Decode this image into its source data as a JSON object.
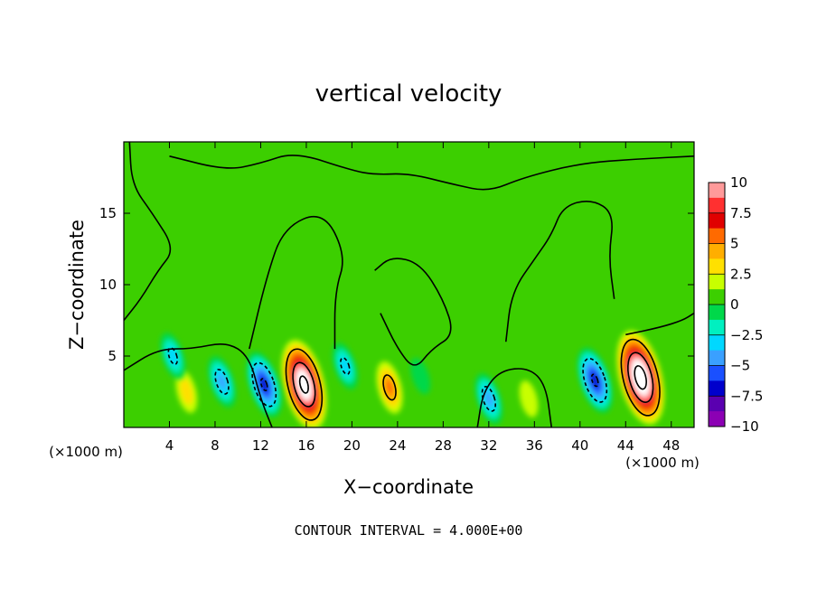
{
  "chart_data": {
    "type": "heatmap",
    "title": "vertical velocity",
    "xlabel": "X−coordinate",
    "ylabel": "Z−coordinate",
    "x_unit_label_left": "(×1000 m)",
    "x_unit_label_right": "(×1000 m)",
    "footer": "CONTOUR INTERVAL = 4.000E+00",
    "xlim": [
      0,
      50
    ],
    "ylim": [
      0,
      20
    ],
    "x_ticks": [
      4,
      8,
      12,
      16,
      20,
      24,
      28,
      32,
      36,
      40,
      44,
      48
    ],
    "y_ticks": [
      5,
      10,
      15
    ],
    "colorbar": {
      "tick_labels": [
        "10",
        "7.5",
        "5",
        "2.5",
        "0",
        "−2.5",
        "−5",
        "−7.5",
        "−10"
      ],
      "tick_values": [
        10,
        7.5,
        5,
        2.5,
        0,
        -2.5,
        -5,
        -7.5,
        -10
      ],
      "range": [
        -10,
        10
      ],
      "colors": [
        "#ff9a9a",
        "#ff3030",
        "#e00000",
        "#ff6a00",
        "#ffae00",
        "#ffe000",
        "#c8ff00",
        "#3ccf00",
        "#00d84a",
        "#00f0c0",
        "#00d8ff",
        "#3aa0ff",
        "#1a50ff",
        "#0000cc",
        "#5a00b0",
        "#8c00b4"
      ]
    },
    "features": [
      {
        "type": "updraft",
        "x": 15.8,
        "z": 3.0,
        "peak": 13
      },
      {
        "type": "updraft",
        "x": 45.3,
        "z": 3.5,
        "peak": 14
      },
      {
        "type": "updraft",
        "x": 23.3,
        "z": 2.8,
        "peak": 5
      },
      {
        "type": "updraft",
        "x": 35.5,
        "z": 2.0,
        "peak": 2
      },
      {
        "type": "updraft",
        "x": 5.5,
        "z": 2.5,
        "peak": 3
      },
      {
        "type": "downdraft",
        "x": 12.3,
        "z": 3.0,
        "peak": -8
      },
      {
        "type": "downdraft",
        "x": 41.3,
        "z": 3.3,
        "peak": -8
      },
      {
        "type": "downdraft",
        "x": 8.6,
        "z": 3.2,
        "peak": -5
      },
      {
        "type": "downdraft",
        "x": 19.4,
        "z": 4.3,
        "peak": -4
      },
      {
        "type": "downdraft",
        "x": 32.0,
        "z": 2.0,
        "peak": -5
      },
      {
        "type": "downdraft",
        "x": 26.0,
        "z": 3.6,
        "peak": -2
      },
      {
        "type": "downdraft",
        "x": 4.3,
        "z": 5.0,
        "peak": -4
      }
    ]
  }
}
